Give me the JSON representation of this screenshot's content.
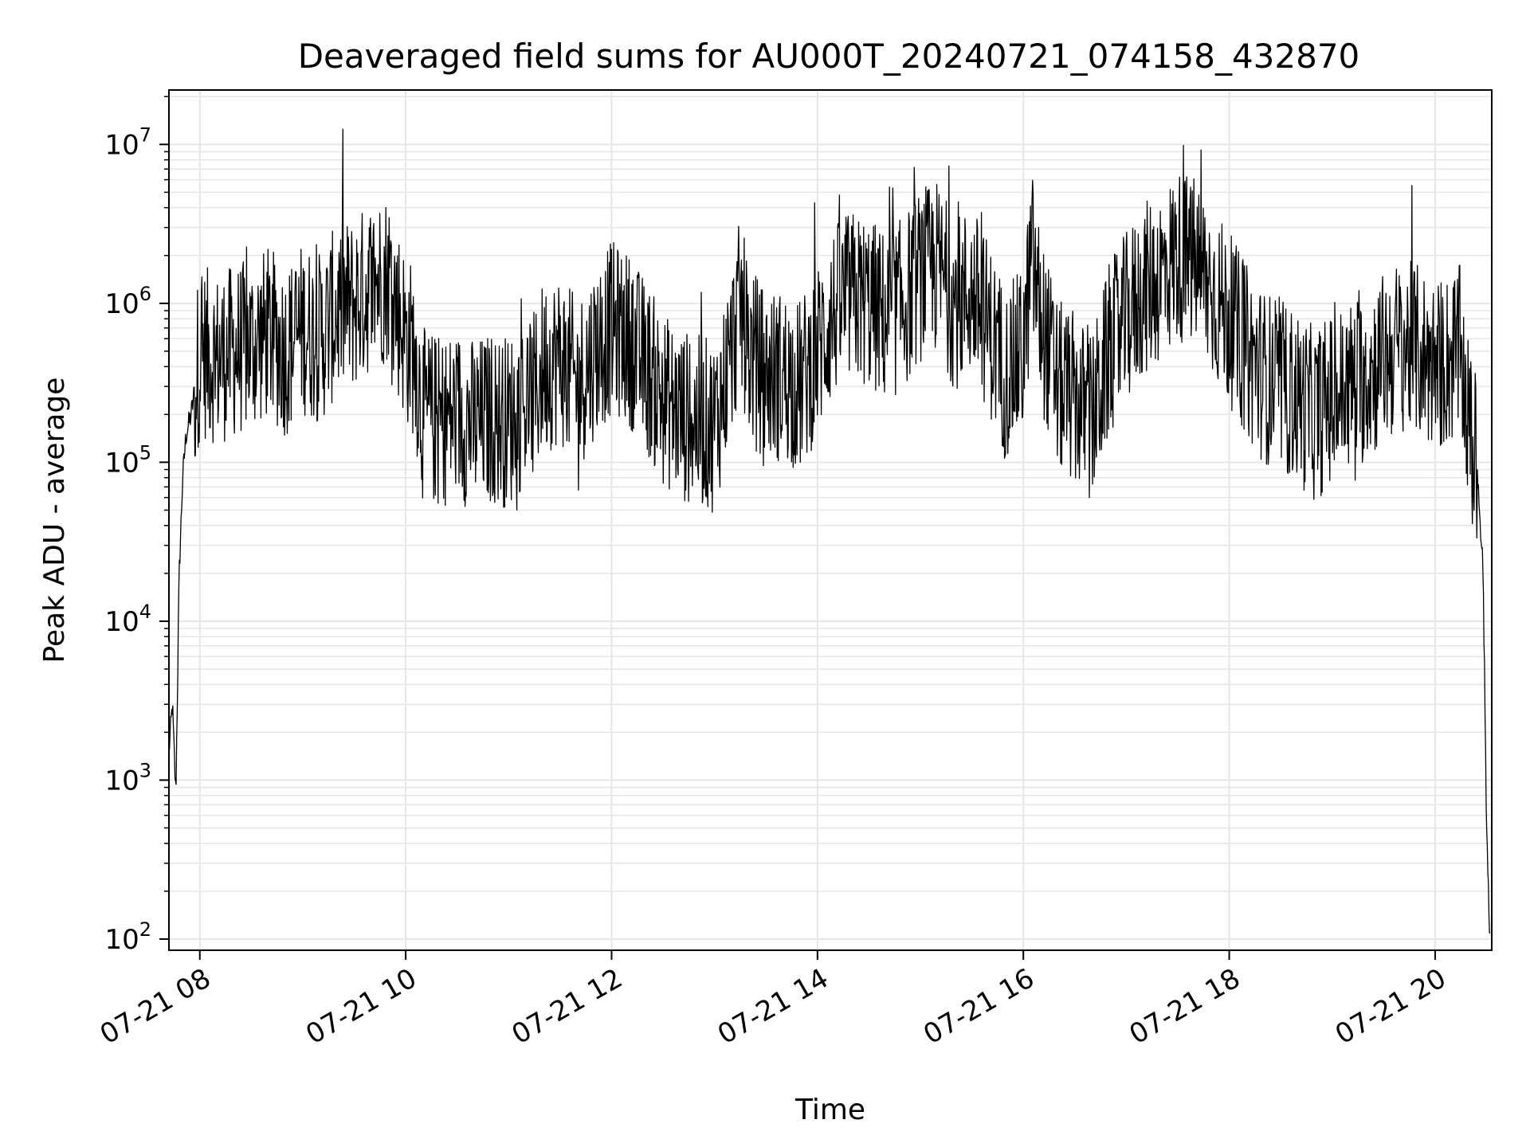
{
  "chart_data": {
    "type": "line",
    "title": "Deaveraged field sums for AU000T_20240721_074158_432870",
    "xlabel": "Time",
    "ylabel": "Peak ADU - average",
    "yscale": "log",
    "ylim": [
      85,
      22000000
    ],
    "xlim": [
      "2024-07-21 07:42",
      "2024-07-21 20:33"
    ],
    "x_ticks": [
      {
        "label": "07-21 08",
        "time": "2024-07-21 08:00"
      },
      {
        "label": "07-21 10",
        "time": "2024-07-21 10:00"
      },
      {
        "label": "07-21 12",
        "time": "2024-07-21 12:00"
      },
      {
        "label": "07-21 14",
        "time": "2024-07-21 14:00"
      },
      {
        "label": "07-21 16",
        "time": "2024-07-21 16:00"
      },
      {
        "label": "07-21 18",
        "time": "2024-07-21 18:00"
      },
      {
        "label": "07-21 20",
        "time": "2024-07-21 20:00"
      }
    ],
    "y_ticks": [
      {
        "base": "10",
        "exp": "2",
        "value": 100
      },
      {
        "base": "10",
        "exp": "3",
        "value": 1000
      },
      {
        "base": "10",
        "exp": "4",
        "value": 10000
      },
      {
        "base": "10",
        "exp": "5",
        "value": 100000
      },
      {
        "base": "10",
        "exp": "6",
        "value": 1000000
      },
      {
        "base": "10",
        "exp": "7",
        "value": 10000000
      }
    ],
    "grid": true,
    "line_color": "#000000",
    "grid_color": "#e6e6e6",
    "series": [
      {
        "x": [
          "07:42",
          "07:44",
          "07:46",
          "07:48",
          "07:50",
          "07:52",
          "07:55",
          "08:00",
          "08:10",
          "08:20",
          "08:30",
          "08:40",
          "08:50",
          "09:00",
          "09:10",
          "09:20",
          "09:30",
          "09:40",
          "09:50",
          "10:00",
          "10:05",
          "10:10",
          "10:20",
          "10:30",
          "10:40",
          "10:50",
          "11:00",
          "11:10",
          "11:15",
          "11:20",
          "11:30",
          "11:40",
          "11:50",
          "12:00",
          "12:10",
          "12:20",
          "12:30",
          "12:40",
          "12:50",
          "13:00",
          "13:10",
          "13:15",
          "13:20",
          "13:30",
          "13:40",
          "13:50",
          "14:00",
          "14:10",
          "14:20",
          "14:30",
          "14:40",
          "14:50",
          "15:00",
          "15:10",
          "15:20",
          "15:30",
          "15:40",
          "15:50",
          "16:00",
          "16:05",
          "16:10",
          "16:20",
          "16:30",
          "16:40",
          "16:50",
          "17:00",
          "17:10",
          "17:20",
          "17:30",
          "17:40",
          "17:50",
          "18:00",
          "18:10",
          "18:20",
          "18:30",
          "18:40",
          "18:50",
          "19:00",
          "19:10",
          "19:20",
          "19:30",
          "19:40",
          "19:50",
          "20:00",
          "20:10",
          "20:15",
          "20:20",
          "20:25",
          "20:28",
          "20:30",
          "20:32"
        ],
        "y": [
          1500,
          3000,
          800,
          20000,
          80000,
          150000,
          200000,
          500000,
          450000,
          500000,
          550000,
          650000,
          500000,
          700000,
          600000,
          900000,
          1000000,
          1300000,
          1500000,
          600000,
          500000,
          200000,
          180000,
          200000,
          170000,
          190000,
          180000,
          250000,
          250000,
          400000,
          450000,
          300000,
          500000,
          700000,
          600000,
          400000,
          250000,
          200000,
          180000,
          170000,
          500000,
          1000000,
          500000,
          350000,
          350000,
          300000,
          500000,
          900000,
          1100000,
          1000000,
          800000,
          1000000,
          1500000,
          1700000,
          1000000,
          1200000,
          700000,
          350000,
          500000,
          2000000,
          800000,
          300000,
          250000,
          180000,
          500000,
          800000,
          1200000,
          1500000,
          2000000,
          1800000,
          1200000,
          800000,
          500000,
          350000,
          300000,
          250000,
          200000,
          250000,
          300000,
          350000,
          450000,
          550000,
          500000,
          400000,
          450000,
          500000,
          150000,
          80000,
          20000,
          500,
          100
        ]
      }
    ]
  }
}
